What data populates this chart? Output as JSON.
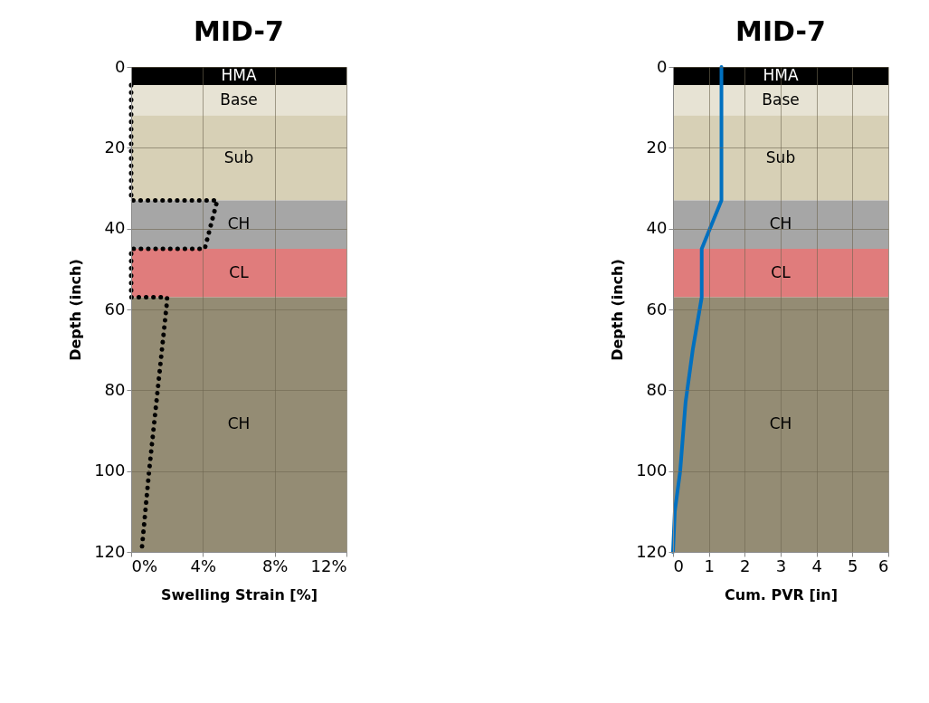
{
  "chart_data": [
    {
      "type": "line",
      "title": "MID-7",
      "xlabel": "Swelling Strain [%]",
      "ylabel": "Depth (inch)",
      "xlim": [
        0,
        12
      ],
      "xticks": [
        {
          "value": 0,
          "label": "0%"
        },
        {
          "value": 4,
          "label": "4%"
        },
        {
          "value": 8,
          "label": "8%"
        },
        {
          "value": 12,
          "label": "12%"
        }
      ],
      "ylim": [
        120,
        0
      ],
      "yticks": [
        0,
        20,
        40,
        60,
        80,
        100,
        120
      ],
      "grid": true,
      "bands": [
        {
          "axis": "y",
          "from": 0,
          "to": 4.5,
          "label": "HMA",
          "color": "#000000"
        },
        {
          "axis": "y",
          "from": 4.5,
          "to": 12,
          "label": "Base",
          "color": "#e7e3d4"
        },
        {
          "axis": "y",
          "from": 12,
          "to": 33,
          "label": "Sub",
          "color": "#d7d0b6"
        },
        {
          "axis": "y",
          "from": 33,
          "to": 45,
          "label": "CH",
          "color": "#a6a6a6"
        },
        {
          "axis": "y",
          "from": 45,
          "to": 57,
          "label": "CL",
          "color": "#e07c7c"
        },
        {
          "axis": "y",
          "from": 57,
          "to": 120,
          "label": "CH",
          "color": "#948c74"
        }
      ],
      "series": [
        {
          "color": "#000000",
          "line_style": "dotted",
          "x": [
            0,
            0,
            4.8,
            4.1,
            0,
            0,
            2.0,
            2.0,
            1.5,
            1.0,
            0.6
          ],
          "values": [
            4.5,
            33,
            33,
            45,
            45,
            57,
            57,
            58,
            79,
            100,
            119
          ]
        }
      ]
    },
    {
      "type": "line",
      "title": "MID-7",
      "xlabel": "Cum. PVR [in]",
      "ylabel": "Depth (inch)",
      "xlim": [
        0,
        6
      ],
      "xticks": [
        0,
        1,
        2,
        3,
        4,
        5,
        6
      ],
      "ylim": [
        120,
        0
      ],
      "yticks": [
        0,
        20,
        40,
        60,
        80,
        100,
        120
      ],
      "grid": true,
      "bands": [
        {
          "axis": "y",
          "from": 0,
          "to": 4.5,
          "label": "HMA",
          "color": "#000000"
        },
        {
          "axis": "y",
          "from": 4.5,
          "to": 12,
          "label": "Base",
          "color": "#e7e3d4"
        },
        {
          "axis": "y",
          "from": 12,
          "to": 33,
          "label": "Sub",
          "color": "#d7d0b6"
        },
        {
          "axis": "y",
          "from": 33,
          "to": 45,
          "label": "CH",
          "color": "#a6a6a6"
        },
        {
          "axis": "y",
          "from": 45,
          "to": 57,
          "label": "CL",
          "color": "#e07c7c"
        },
        {
          "axis": "y",
          "from": 57,
          "to": 120,
          "label": "CH",
          "color": "#948c74"
        }
      ],
      "series": [
        {
          "color": "#0070c0",
          "line_style": "solid",
          "x": [
            1.35,
            1.35,
            0.8,
            0.8,
            0.55,
            0.35,
            0.2,
            0.05,
            0
          ],
          "values": [
            0,
            33,
            45,
            57,
            70,
            83,
            100,
            110,
            120
          ]
        }
      ]
    }
  ]
}
